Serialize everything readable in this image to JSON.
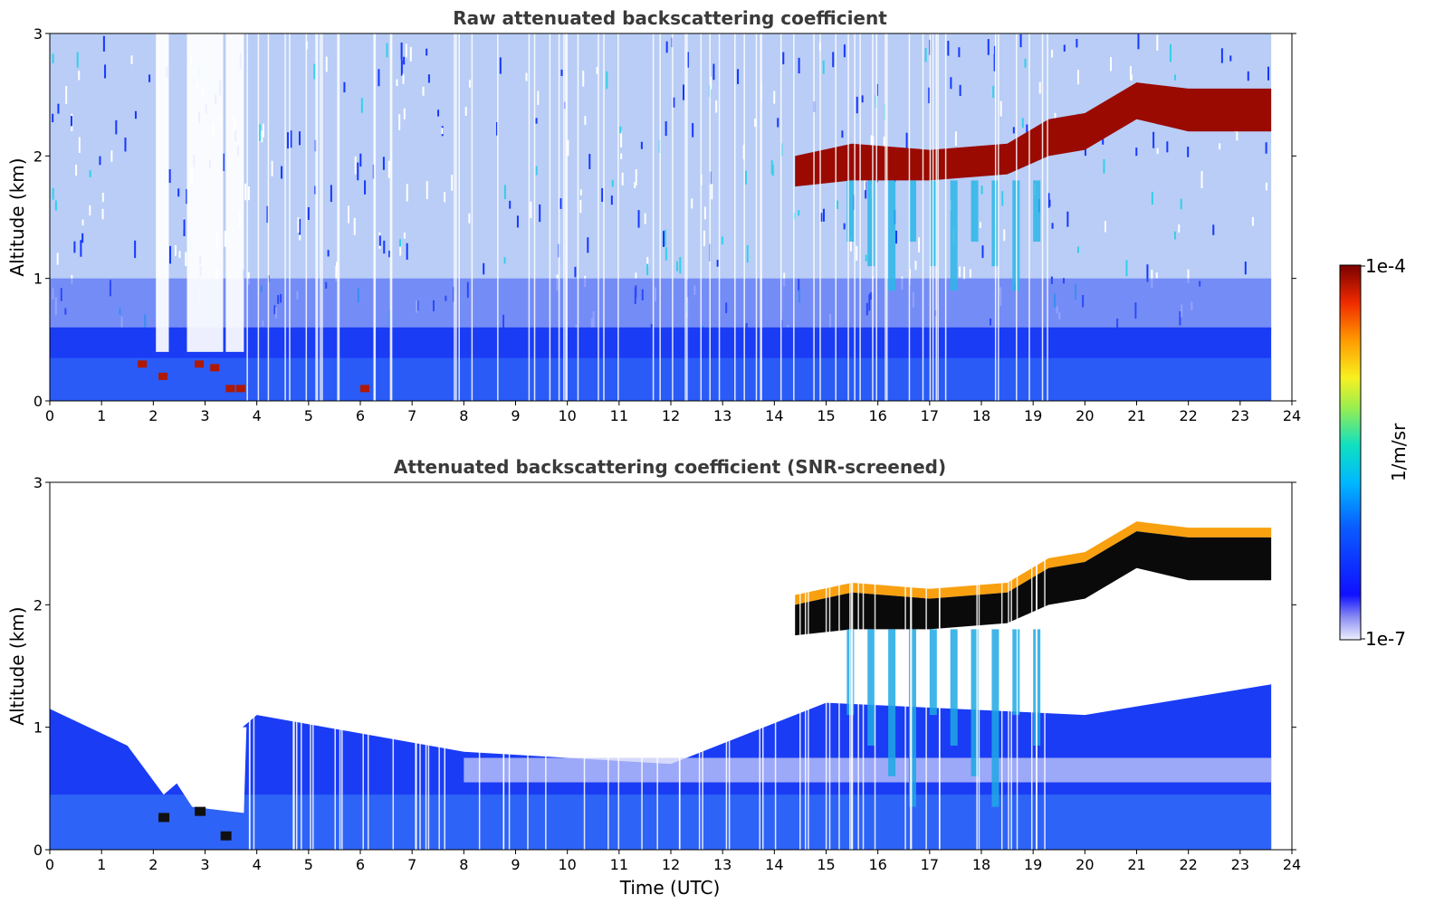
{
  "chart_data": [
    {
      "type": "heatmap",
      "title": "Raw attenuated backscattering coefficient",
      "xlabel": "",
      "ylabel": "Altitude (km)",
      "xlim": [
        0,
        24
      ],
      "ylim": [
        0,
        3
      ],
      "xticks": [
        "0",
        "1",
        "2",
        "3",
        "4",
        "5",
        "6",
        "7",
        "8",
        "9",
        "10",
        "11",
        "12",
        "13",
        "14",
        "15",
        "16",
        "17",
        "18",
        "19",
        "20",
        "21",
        "22",
        "23",
        "24"
      ],
      "yticks": [
        "0",
        "1",
        "2",
        "3"
      ],
      "data_end_time": 23.6,
      "features": {
        "boundary_layer_top_km": 0.6,
        "cloud_layer": [
          {
            "time": 14.4,
            "base_km": 1.75,
            "top_km": 2.0
          },
          {
            "time": 15.5,
            "base_km": 1.8,
            "top_km": 2.1
          },
          {
            "time": 17.0,
            "base_km": 1.8,
            "top_km": 2.05
          },
          {
            "time": 18.5,
            "base_km": 1.85,
            "top_km": 2.1
          },
          {
            "time": 19.3,
            "base_km": 2.0,
            "top_km": 2.3
          },
          {
            "time": 20.0,
            "base_km": 2.05,
            "top_km": 2.35
          },
          {
            "time": 21.0,
            "base_km": 2.3,
            "top_km": 2.6
          },
          {
            "time": 22.0,
            "base_km": 2.2,
            "top_km": 2.55
          },
          {
            "time": 23.6,
            "base_km": 2.2,
            "top_km": 2.55
          }
        ],
        "precip_streaks_time": [
          15.4,
          15.8,
          16.2,
          16.6,
          17.0,
          17.4,
          17.8,
          18.2,
          18.6,
          19.0
        ]
      }
    },
    {
      "type": "heatmap",
      "title": "Attenuated backscattering coefficient (SNR-screened)",
      "xlabel": "Time (UTC)",
      "ylabel": "Altitude (km)",
      "xlim": [
        0,
        24
      ],
      "ylim": [
        0,
        3
      ],
      "xticks": [
        "0",
        "1",
        "2",
        "3",
        "4",
        "5",
        "6",
        "7",
        "8",
        "9",
        "10",
        "11",
        "12",
        "13",
        "14",
        "15",
        "16",
        "17",
        "18",
        "19",
        "20",
        "21",
        "22",
        "23",
        "24"
      ],
      "yticks": [
        "0",
        "1",
        "2",
        "3"
      ],
      "data_end_time": 23.6,
      "features": {
        "screened_layer_top_km": [
          {
            "time": 0,
            "km": 1.15
          },
          {
            "time": 1.5,
            "km": 0.85
          },
          {
            "time": 2.2,
            "km": 0.45
          },
          {
            "time": 4,
            "km": 1.1
          },
          {
            "time": 8,
            "km": 0.8
          },
          {
            "time": 12,
            "km": 0.7
          },
          {
            "time": 15,
            "km": 1.2
          },
          {
            "time": 20,
            "km": 1.1
          },
          {
            "time": 23.6,
            "km": 1.35
          }
        ]
      }
    }
  ],
  "colorbar": {
    "label": "1/m/sr",
    "max_label": "1e-4",
    "min_label": "1e-7",
    "scale": "log",
    "colormap": "jet"
  }
}
